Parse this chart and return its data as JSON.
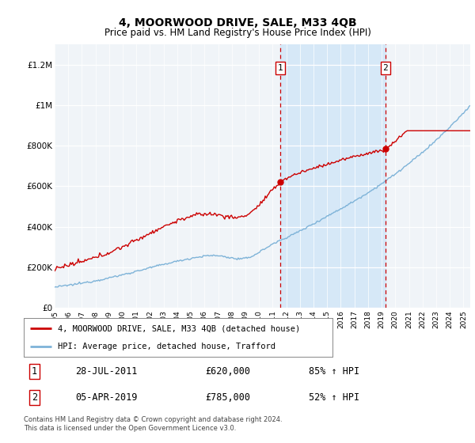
{
  "title": "4, MOORWOOD DRIVE, SALE, M33 4QB",
  "subtitle": "Price paid vs. HM Land Registry's House Price Index (HPI)",
  "legend_line1": "4, MOORWOOD DRIVE, SALE, M33 4QB (detached house)",
  "legend_line2": "HPI: Average price, detached house, Trafford",
  "sale1_label": "1",
  "sale1_date": "28-JUL-2011",
  "sale1_price": "£620,000",
  "sale1_hpi": "85% ↑ HPI",
  "sale1_year": 2011.57,
  "sale1_value": 620000,
  "sale2_label": "2",
  "sale2_date": "05-APR-2019",
  "sale2_price": "£785,000",
  "sale2_hpi": "52% ↑ HPI",
  "sale2_year": 2019.27,
  "sale2_value": 785000,
  "footer": "Contains HM Land Registry data © Crown copyright and database right 2024.\nThis data is licensed under the Open Government Licence v3.0.",
  "hpi_color": "#7eb3d8",
  "price_color": "#cc0000",
  "marker_color": "#cc0000",
  "dashed_color": "#cc0000",
  "shade_color": "#d6e8f7",
  "bg_color": "#f0f4f8",
  "ylim": [
    0,
    1300000
  ],
  "xlim_start": 1995,
  "xlim_end": 2025.5,
  "yticks": [
    0,
    200000,
    400000,
    600000,
    800000,
    1000000,
    1200000
  ],
  "ytick_labels": [
    "£0",
    "£200K",
    "£400K",
    "£600K",
    "£800K",
    "£1M",
    "£1.2M"
  ]
}
